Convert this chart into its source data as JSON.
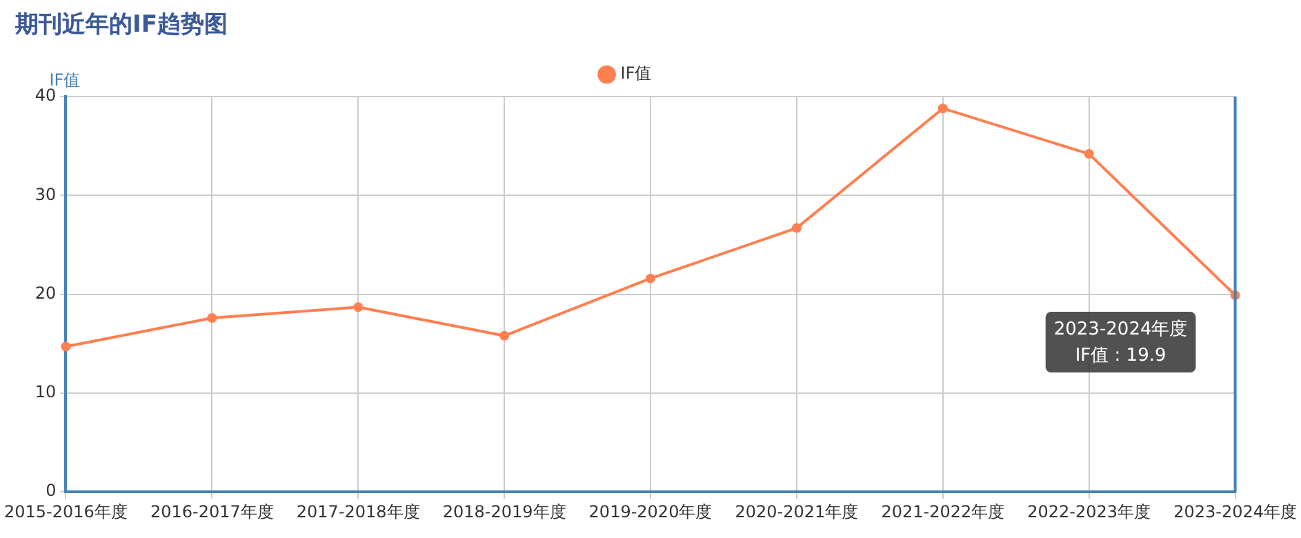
{
  "chart_data": {
    "type": "line",
    "title": "期刊近年的IF趋势图",
    "ylabel": "IF值",
    "categories": [
      "2015-2016年度",
      "2016-2017年度",
      "2017-2018年度",
      "2018-2019年度",
      "2019-2020年度",
      "2020-2021年度",
      "2021-2022年度",
      "2022-2023年度",
      "2023-2024年度"
    ],
    "series": [
      {
        "name": "IF值",
        "color": "#ff7f50",
        "values": [
          14.7,
          17.6,
          18.7,
          15.8,
          21.6,
          26.7,
          38.8,
          34.2,
          19.9
        ]
      }
    ],
    "ylim": [
      0,
      40
    ],
    "yticks": [
      0,
      10,
      20,
      30,
      40
    ],
    "grid": true,
    "legend": "top",
    "marker": "circle",
    "line_style": "solid",
    "annotations": [
      {
        "text": "2023-2024年度\nIF值 : 19.9",
        "x": "2023-2024年度",
        "y": 19.9
      }
    ]
  }
}
